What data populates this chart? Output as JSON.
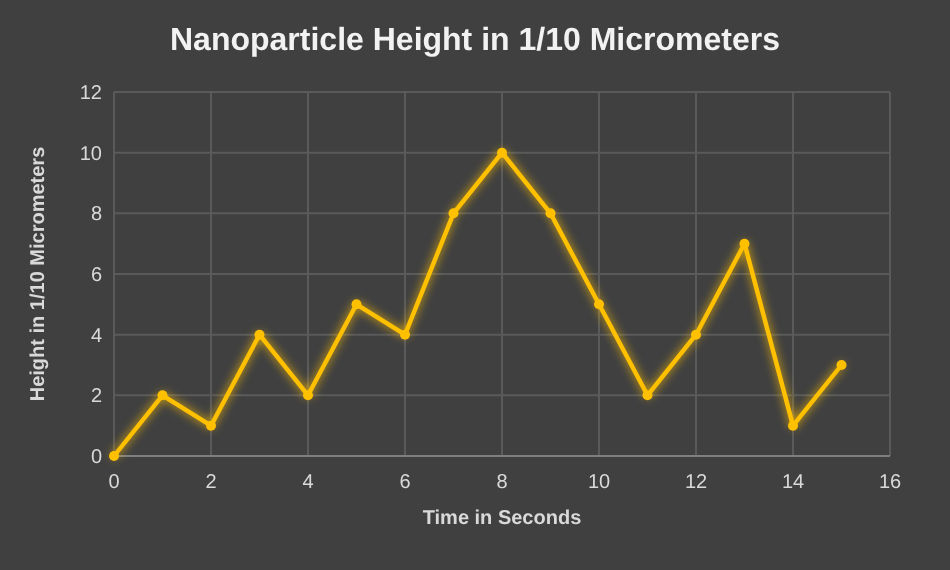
{
  "chart_data": {
    "type": "line",
    "title": "Nanoparticle Height in 1/10 Micrometers",
    "xlabel": "Time in Seconds",
    "ylabel": "Height in 1/10 Micrometers",
    "x": [
      0,
      1,
      2,
      3,
      4,
      5,
      6,
      7,
      8,
      9,
      10,
      11,
      12,
      13,
      14,
      15
    ],
    "series": [
      {
        "color": "#ffc000",
        "values": [
          0,
          2,
          1,
          4,
          2,
          5,
          4,
          8,
          10,
          8,
          5,
          2,
          4,
          7,
          1,
          3
        ]
      }
    ],
    "xlim": [
      0,
      16
    ],
    "xticks": [
      0,
      2,
      4,
      6,
      8,
      10,
      12,
      14,
      16
    ],
    "ylim": [
      0,
      12
    ],
    "yticks": [
      0,
      2,
      4,
      6,
      8,
      10,
      12
    ],
    "grid": true,
    "marker": "circle",
    "line_style": "solid"
  }
}
